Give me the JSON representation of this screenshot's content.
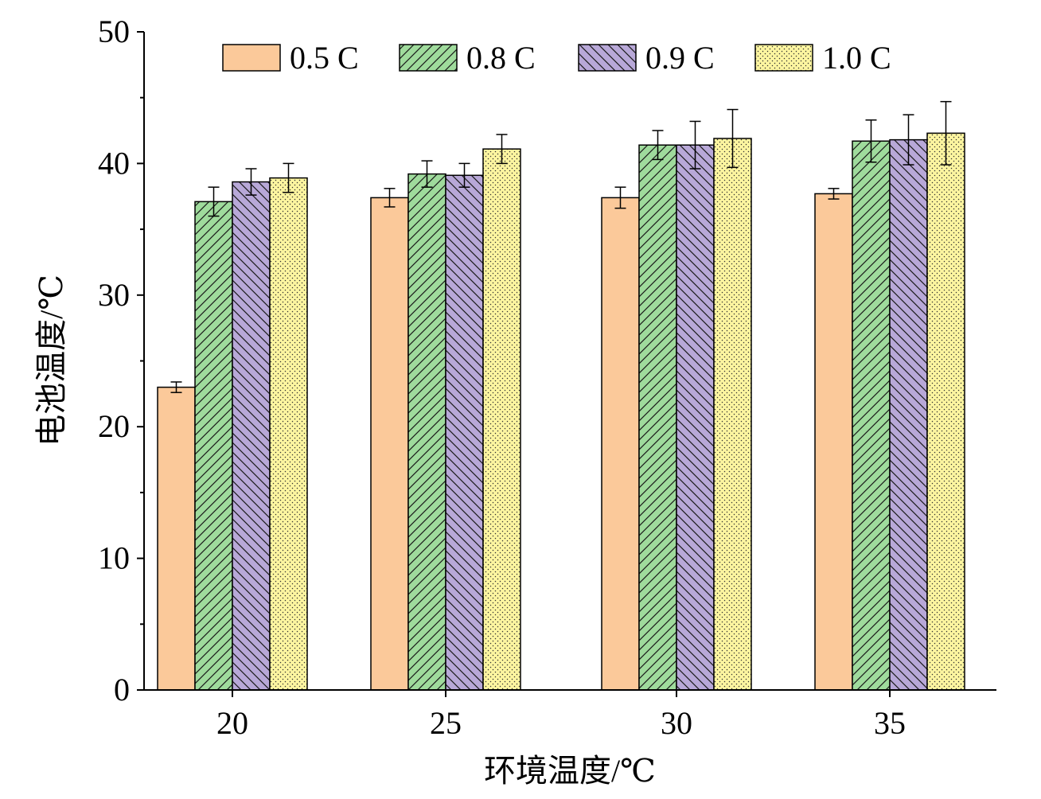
{
  "chart_data": {
    "type": "bar",
    "xlabel": "环境温度/℃",
    "ylabel": "电池温度/℃",
    "categories": [
      "20",
      "25",
      "30",
      "35"
    ],
    "ylim": [
      0,
      50
    ],
    "yticks": [
      "0",
      "10",
      "20",
      "30",
      "40",
      "50"
    ],
    "legend_position": "top",
    "grid": false,
    "series": [
      {
        "name": "0.5 C",
        "color": "#FBC99A",
        "pattern": "solid",
        "values": [
          23.0,
          37.4,
          37.4,
          37.7
        ],
        "errors": [
          0.4,
          0.7,
          0.8,
          0.4
        ]
      },
      {
        "name": "0.8 C",
        "color": "#9FDB9C",
        "pattern": "diagonal-forward",
        "values": [
          37.1,
          39.2,
          41.4,
          41.7
        ],
        "errors": [
          1.1,
          1.0,
          1.1,
          1.6
        ]
      },
      {
        "name": "0.9 C",
        "color": "#B8A8D8",
        "pattern": "diagonal-back",
        "values": [
          38.6,
          39.1,
          41.4,
          41.8
        ],
        "errors": [
          1.0,
          0.9,
          1.8,
          1.9
        ]
      },
      {
        "name": "1.0 C",
        "color": "#FCF5A0",
        "pattern": "dots",
        "values": [
          38.9,
          41.1,
          41.9,
          42.3
        ],
        "errors": [
          1.1,
          1.1,
          2.2,
          2.4
        ]
      }
    ]
  }
}
